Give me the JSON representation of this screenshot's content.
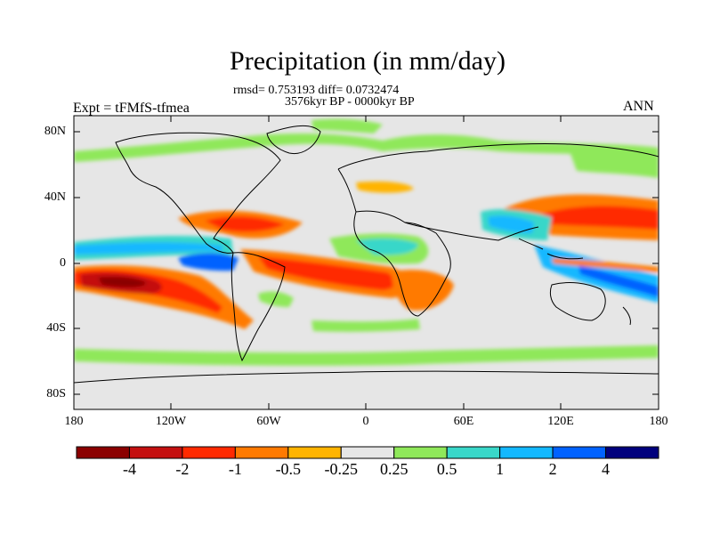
{
  "title": "Precipitation (in mm/day)",
  "stats_line": "rmsd= 0.753193 diff= 0.0732474",
  "period_line": "3576kyr BP - 0000kyr BP",
  "experiment": "Expt = tFMfS-tfmea",
  "season": "ANN",
  "y_ticks": [
    "80N",
    "40N",
    "0",
    "40S",
    "80S"
  ],
  "x_ticks": [
    "180",
    "120W",
    "60W",
    "0",
    "60E",
    "120E",
    "180"
  ],
  "colorbar": {
    "colors": [
      "#8b0000",
      "#c41010",
      "#ff2a00",
      "#ff7a00",
      "#ffb400",
      "#e6e6e6",
      "#8fe85a",
      "#39d7c9",
      "#13b8ff",
      "#0062ff",
      "#00007d"
    ],
    "labels": [
      "-4",
      "-2",
      "-1",
      "-0.5",
      "-0.25",
      "0.25",
      "0.5",
      "1",
      "2",
      "4"
    ]
  },
  "chart_data": {
    "type": "heatmap",
    "title": "Precipitation (in mm/day)",
    "xlabel": "",
    "ylabel": "",
    "xlim": [
      -180,
      180
    ],
    "ylim": [
      -90,
      90
    ],
    "levels": [
      -4,
      -2,
      -1,
      -0.5,
      -0.25,
      0.25,
      0.5,
      1,
      2,
      4
    ]
  }
}
